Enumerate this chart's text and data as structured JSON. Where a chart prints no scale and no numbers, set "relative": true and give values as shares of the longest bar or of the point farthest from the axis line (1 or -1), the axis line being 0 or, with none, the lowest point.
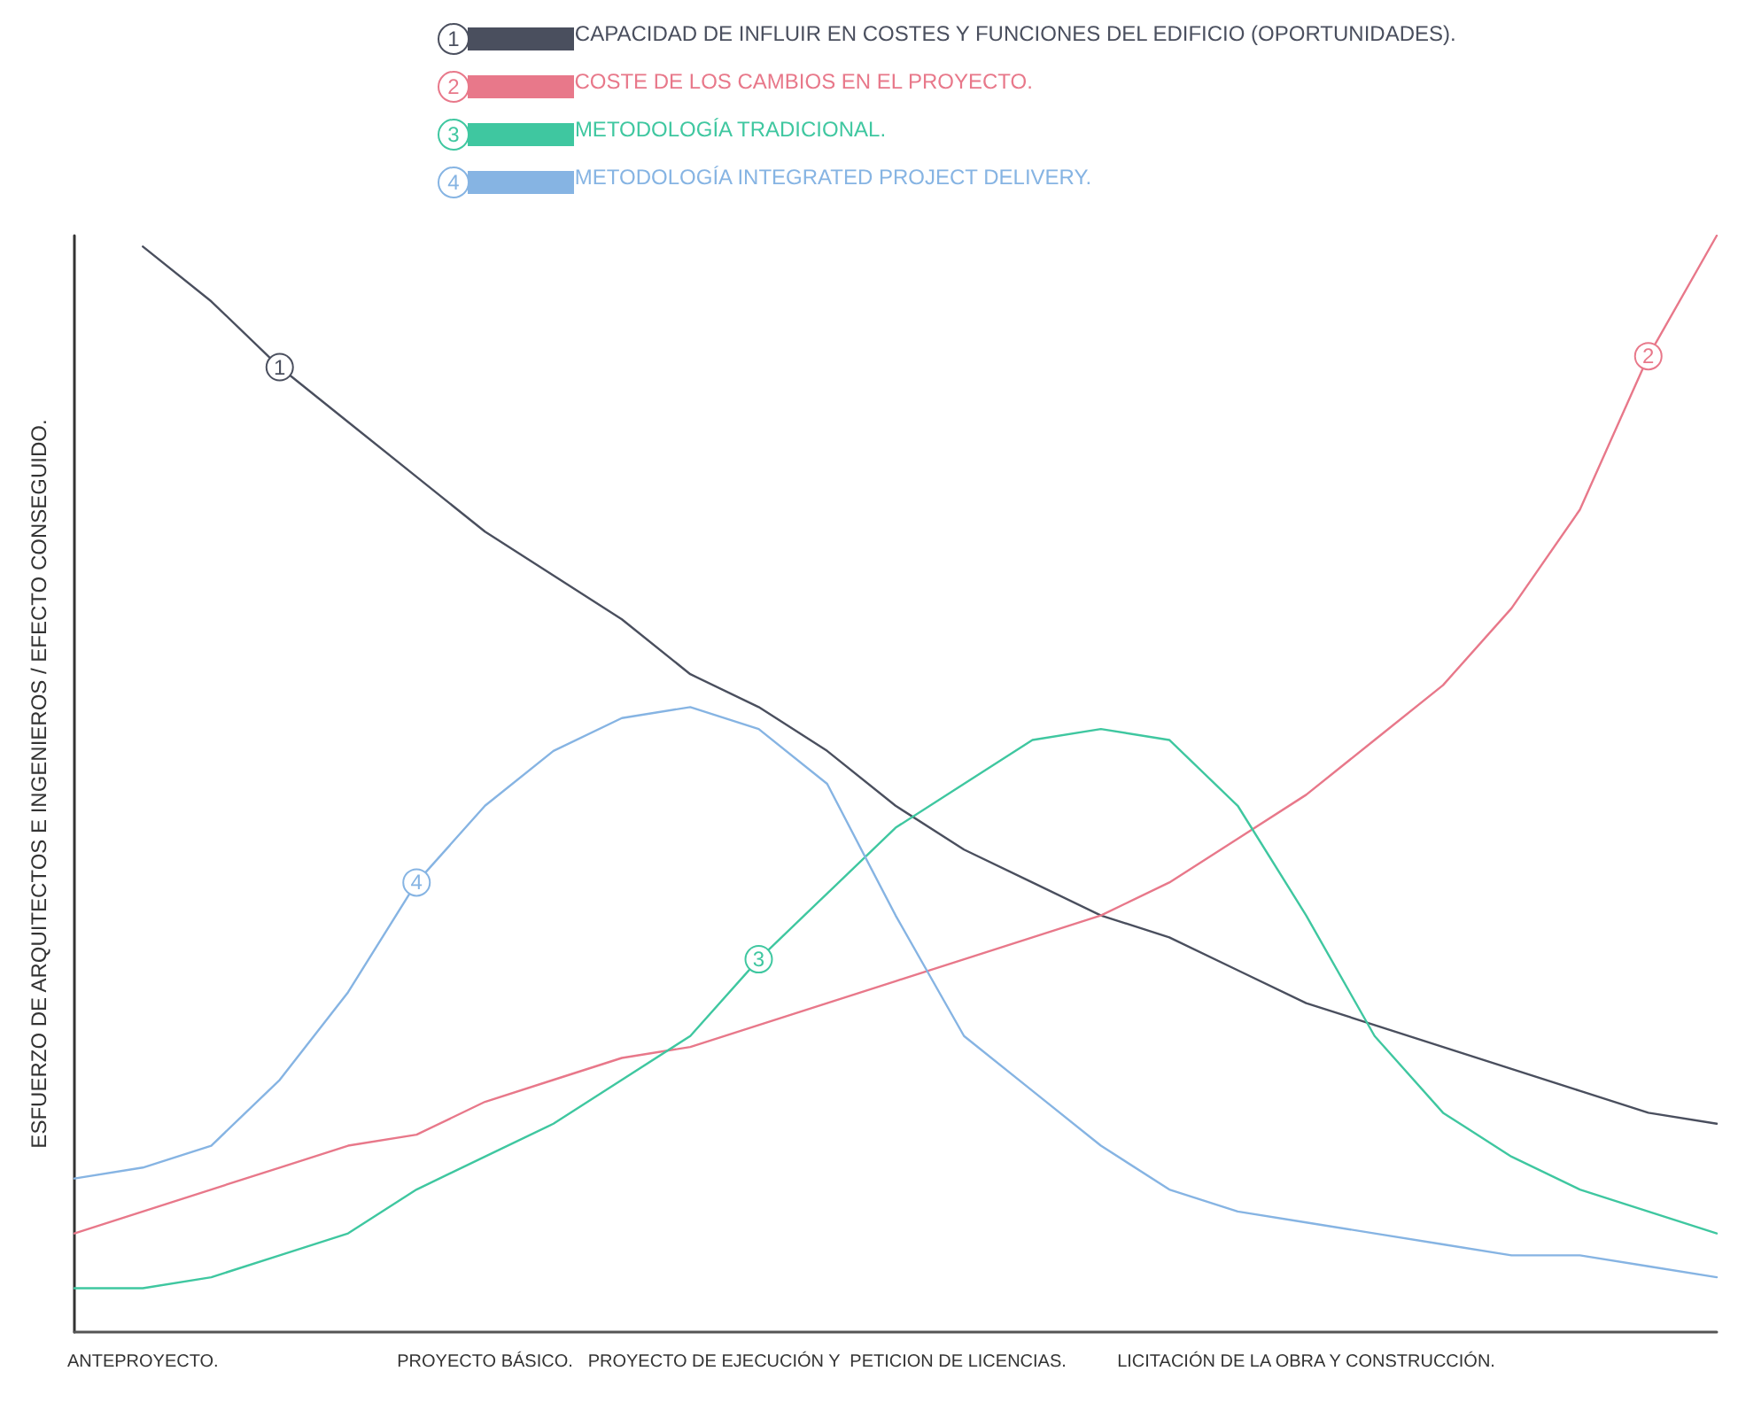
{
  "chart_data": {
    "type": "line",
    "relative": true,
    "ylabel": "ESFUERZO DE ARQUITECTOS E INGENIEROS / EFECTO CONSEGUIDO.",
    "categories": [
      null,
      "ANTEPROYECTO.",
      null,
      null,
      null,
      null,
      "PROYECTO BÁSICO.",
      null,
      null,
      null,
      null,
      "PROYECTO DE EJECUCIÓN Y  PETICION DE LICENCIAS.",
      null,
      null,
      null,
      null,
      null,
      null,
      "LICITACIÓN DE LA OBRA Y CONSTRUCCIÓN.",
      null,
      null,
      null,
      null,
      null,
      null
    ],
    "series": [
      {
        "name": "CAPACIDAD DE INFLUIR EN COSTES Y FUNCIONES DEL EDIFICIO (OPORTUNIDADES).",
        "color": "#4a4f5e",
        "values": [
          null,
          0.99,
          0.94,
          0.88,
          0.83,
          0.78,
          0.73,
          0.69,
          0.65,
          0.6,
          0.57,
          0.53,
          0.48,
          0.44,
          0.41,
          0.38,
          0.36,
          0.33,
          0.3,
          0.28,
          0.26,
          0.24,
          0.22,
          0.2,
          0.19
        ]
      },
      {
        "name": "COSTE DE LOS CAMBIOS EN EL PROYECTO.",
        "color": "#e8788a",
        "values": [
          0.09,
          0.11,
          0.13,
          0.15,
          0.17,
          0.18,
          0.21,
          0.23,
          0.25,
          0.26,
          0.28,
          0.3,
          0.32,
          0.34,
          0.36,
          0.38,
          0.41,
          0.45,
          0.49,
          0.54,
          0.59,
          0.66,
          0.75,
          0.89,
          1.0
        ]
      },
      {
        "name": "METODOLOGÍA TRADICIONAL.",
        "color": "#3fc7a0",
        "values": [
          0.04,
          0.04,
          0.05,
          0.07,
          0.09,
          0.13,
          0.16,
          0.19,
          0.23,
          0.27,
          0.34,
          0.4,
          0.46,
          0.5,
          0.54,
          0.55,
          0.54,
          0.48,
          0.38,
          0.27,
          0.2,
          0.16,
          0.13,
          0.11,
          0.09
        ]
      },
      {
        "name": "METODOLOGÍA INTEGRATED PROJECT DELIVERY.",
        "color": "#86b4e3",
        "values": [
          0.14,
          0.15,
          0.17,
          0.23,
          0.31,
          0.41,
          0.48,
          0.53,
          0.56,
          0.57,
          0.55,
          0.5,
          0.38,
          0.27,
          0.22,
          0.17,
          0.13,
          0.11,
          0.1,
          0.09,
          0.08,
          0.07,
          0.07,
          0.06,
          0.05
        ]
      }
    ],
    "annotations": [
      "1",
      "2",
      "3",
      "4"
    ],
    "legend": "top"
  }
}
